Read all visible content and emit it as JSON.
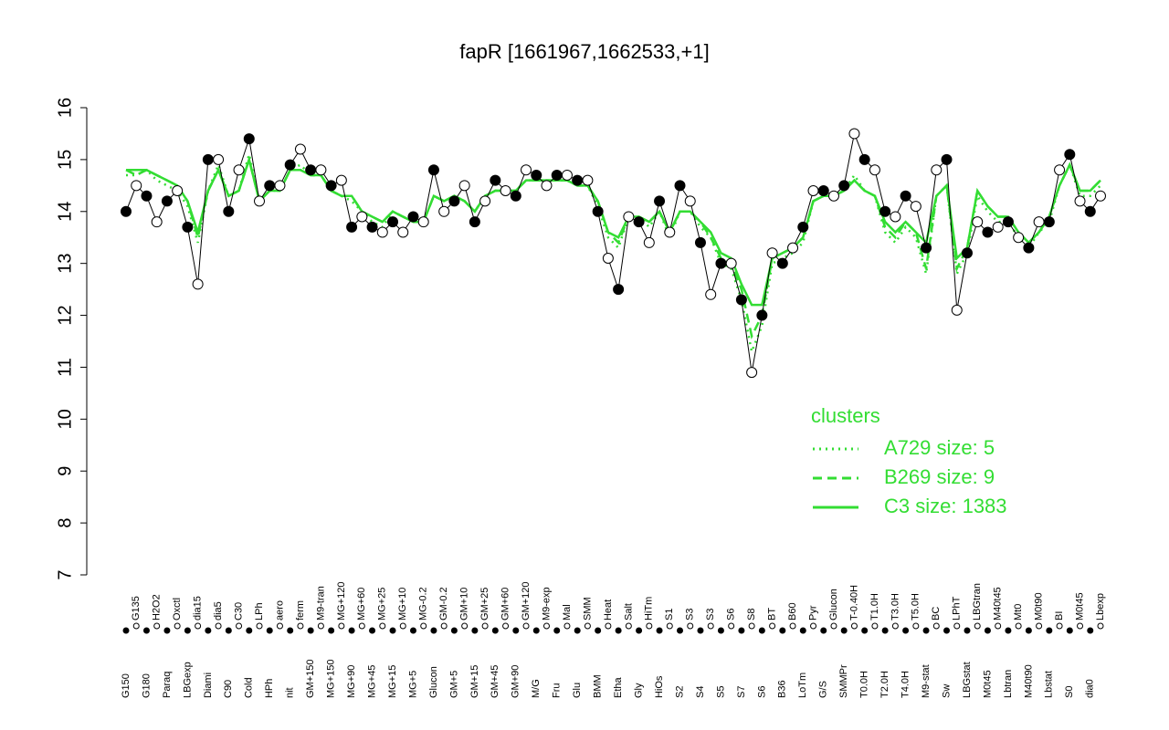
{
  "chart_data": {
    "type": "line",
    "title": "fapR [1661967,1662533,+1]",
    "categories": [
      "G150",
      "G135",
      "G180",
      "H2O2",
      "Paraq",
      "Oxctl",
      "LBGexp",
      "dia15",
      "Diami",
      "dia5",
      "C90",
      "C30",
      "Cold",
      "LPh",
      "HPh",
      "aero",
      "nit",
      "ferm",
      "GM+150",
      "M9-tran",
      "MG+150",
      "MG+120",
      "MG+90",
      "MG+60",
      "MG+45",
      "MG+25",
      "MG+15",
      "MG+10",
      "MG+5",
      "MG-0.2",
      "Glucon",
      "GM-0.2",
      "GM+5",
      "GM+10",
      "GM+15",
      "GM+25",
      "GM+45",
      "GM+60",
      "GM+90",
      "GM+120",
      "M/G",
      "M9-exp",
      "Fru",
      "Mal",
      "Glu",
      "SMM",
      "BMM",
      "Heat",
      "Etha",
      "Salt",
      "Gly",
      "HiTm",
      "HiOs",
      "S1",
      "S2",
      "S3",
      "S4",
      "S3",
      "S5",
      "S6",
      "S7",
      "S8",
      "S6",
      "BT",
      "B36",
      "B60",
      "LoTm",
      "Pyr",
      "G/S",
      "Glucon",
      "SMMPr",
      "T-0.40H",
      "T0.0H",
      "T1.0H",
      "T2.0H",
      "T3.0H",
      "T4.0H",
      "T5.0H",
      "M9-stat",
      "BC",
      "Sw",
      "LPhT",
      "LBGstat",
      "LBGtran",
      "M0t45",
      "M40t45",
      "Lbtran",
      "Mt0",
      "M40t90",
      "M0t90",
      "Lbstat",
      "BI",
      "S0",
      "M0t45",
      "dia0",
      "Lbexp"
    ],
    "values": [
      14.0,
      14.5,
      14.3,
      13.8,
      14.2,
      14.4,
      13.7,
      12.6,
      15.0,
      15.0,
      14.0,
      14.8,
      15.4,
      14.2,
      14.5,
      14.5,
      14.9,
      15.2,
      14.8,
      14.8,
      14.5,
      14.6,
      13.7,
      13.9,
      13.7,
      13.6,
      13.8,
      13.6,
      13.9,
      13.8,
      14.8,
      14.0,
      14.2,
      14.5,
      13.8,
      14.2,
      14.6,
      14.4,
      14.3,
      14.8,
      14.7,
      14.5,
      14.7,
      14.7,
      14.6,
      14.6,
      14.0,
      13.1,
      12.5,
      13.9,
      13.8,
      13.4,
      14.2,
      13.6,
      14.5,
      14.2,
      13.4,
      12.4,
      13.0,
      13.0,
      12.3,
      10.9,
      12.0,
      13.2,
      13.0,
      13.3,
      13.7,
      14.4,
      14.4,
      14.3,
      14.5,
      15.5,
      15.0,
      14.8,
      14.0,
      13.9,
      14.3,
      14.1,
      13.3,
      14.8,
      15.0,
      12.1,
      13.2,
      13.8,
      13.6,
      13.7,
      13.8,
      13.5,
      13.3,
      13.8,
      13.8,
      14.8,
      15.1,
      14.2,
      14.0,
      14.3
    ],
    "color": "#000000",
    "marker_filled": [
      true,
      false,
      true,
      false,
      true,
      false,
      true,
      false,
      true,
      false,
      true,
      false,
      true,
      false,
      true,
      false,
      true,
      false,
      true,
      false,
      true,
      false,
      true,
      false,
      true,
      false,
      true,
      false,
      true,
      false,
      true,
      false,
      true,
      false,
      true,
      false,
      true,
      false,
      true,
      false,
      true,
      false,
      true,
      false,
      true,
      false,
      true,
      false,
      true,
      false,
      true,
      false,
      true,
      false,
      true,
      false,
      true,
      false,
      true,
      false,
      true,
      false,
      true,
      false,
      true,
      false,
      true,
      false,
      true,
      false,
      true,
      false,
      true,
      false,
      true,
      false,
      true,
      false,
      true,
      false,
      true,
      false,
      true,
      false,
      true,
      false,
      true,
      false,
      true,
      false,
      true,
      false,
      true,
      false,
      true,
      false
    ],
    "legend_title": "clusters",
    "series": [
      {
        "name": "A729 size: 5",
        "color": "#33dd33",
        "dash": "dotted",
        "values": [
          14.7,
          14.7,
          14.8,
          14.6,
          14.5,
          14.4,
          14.1,
          13.4,
          14.4,
          14.9,
          14.3,
          14.4,
          15.1,
          14.2,
          14.4,
          14.4,
          14.8,
          14.9,
          14.7,
          14.7,
          14.4,
          14.3,
          14.2,
          14.0,
          13.8,
          13.7,
          14.0,
          13.9,
          13.8,
          13.8,
          14.3,
          14.2,
          14.3,
          14.2,
          14.0,
          14.3,
          14.4,
          14.4,
          14.4,
          14.6,
          14.6,
          14.6,
          14.6,
          14.6,
          14.5,
          14.5,
          14.1,
          13.5,
          13.3,
          13.9,
          13.9,
          13.7,
          14.0,
          13.5,
          14.0,
          14.0,
          13.7,
          13.5,
          13.0,
          12.9,
          12.3,
          11.3,
          11.8,
          13.0,
          13.1,
          13.2,
          13.4,
          14.2,
          14.3,
          14.3,
          14.4,
          14.7,
          14.4,
          14.3,
          13.6,
          13.4,
          13.7,
          13.5,
          12.8,
          14.3,
          14.5,
          12.8,
          13.2,
          14.3,
          14.0,
          13.8,
          13.8,
          13.5,
          13.3,
          13.6,
          13.8,
          14.5,
          14.9,
          14.3,
          14.3,
          14.5
        ]
      },
      {
        "name": "B269 size: 9",
        "color": "#33dd33",
        "dash": "dashed",
        "values": [
          14.8,
          14.7,
          14.8,
          14.7,
          14.6,
          14.5,
          14.2,
          13.5,
          14.4,
          14.8,
          14.3,
          14.4,
          15.0,
          14.2,
          14.4,
          14.4,
          14.8,
          14.8,
          14.7,
          14.7,
          14.4,
          14.3,
          14.3,
          14.0,
          13.9,
          13.8,
          14.0,
          13.9,
          13.8,
          13.8,
          14.3,
          14.2,
          14.3,
          14.2,
          14.0,
          14.3,
          14.4,
          14.4,
          14.4,
          14.6,
          14.6,
          14.6,
          14.6,
          14.6,
          14.5,
          14.5,
          14.2,
          13.6,
          13.4,
          13.9,
          13.9,
          13.8,
          14.0,
          13.6,
          14.0,
          14.0,
          13.8,
          13.5,
          13.1,
          13.0,
          12.5,
          11.6,
          12.0,
          13.1,
          13.2,
          13.3,
          13.5,
          14.2,
          14.3,
          14.3,
          14.4,
          14.6,
          14.4,
          14.3,
          13.7,
          13.5,
          13.8,
          13.6,
          12.9,
          14.3,
          14.5,
          12.9,
          13.3,
          14.4,
          14.1,
          13.9,
          13.9,
          13.6,
          13.4,
          13.6,
          13.9,
          14.5,
          14.9,
          14.4,
          14.4,
          14.6
        ]
      },
      {
        "name": "C3 size: 1383",
        "color": "#33dd33",
        "dash": "solid",
        "values": [
          14.8,
          14.8,
          14.8,
          14.7,
          14.6,
          14.5,
          14.2,
          13.6,
          14.4,
          14.8,
          14.3,
          14.4,
          15.0,
          14.2,
          14.4,
          14.4,
          14.8,
          14.8,
          14.7,
          14.7,
          14.4,
          14.3,
          14.3,
          14.0,
          13.9,
          13.8,
          14.0,
          13.9,
          13.8,
          13.8,
          14.3,
          14.2,
          14.3,
          14.2,
          14.0,
          14.3,
          14.4,
          14.4,
          14.4,
          14.6,
          14.6,
          14.6,
          14.6,
          14.6,
          14.5,
          14.5,
          14.2,
          13.6,
          13.5,
          13.9,
          13.9,
          13.8,
          14.0,
          13.6,
          14.0,
          14.0,
          13.8,
          13.6,
          13.2,
          13.1,
          12.6,
          12.2,
          12.2,
          13.1,
          13.2,
          13.3,
          13.5,
          14.2,
          14.3,
          14.3,
          14.4,
          14.6,
          14.4,
          14.3,
          13.8,
          13.6,
          13.8,
          13.6,
          13.4,
          14.3,
          14.5,
          13.1,
          13.3,
          14.4,
          14.1,
          13.9,
          13.9,
          13.6,
          13.4,
          13.6,
          13.9,
          14.5,
          14.9,
          14.4,
          14.4,
          14.6
        ]
      }
    ],
    "ylim": [
      7,
      16
    ],
    "yticks": [
      7,
      8,
      9,
      10,
      11,
      12,
      13,
      14,
      15,
      16
    ]
  }
}
